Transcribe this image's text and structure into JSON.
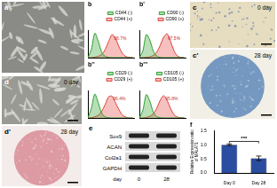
{
  "images": [
    {
      "panel": "a"
    },
    {
      "panel": "c",
      "label": "0 day"
    },
    {
      "panel": "c'",
      "label": "28 day"
    },
    {
      "panel": "d",
      "label": "0 day"
    },
    {
      "panel": "d'",
      "label": "28 day"
    }
  ],
  "blot": {
    "panel": "e",
    "rows": [
      "Sox9",
      "ACAN",
      "Col2a1",
      "GAPDH"
    ],
    "axis_label": "day",
    "columns": [
      "0",
      "28"
    ]
  },
  "chart_data": [
    {
      "type": "line",
      "title": "b",
      "x": [
        0,
        75,
        150,
        225,
        300,
        375,
        450,
        525,
        600,
        675,
        750,
        825,
        900,
        975
      ],
      "xlim": [
        0,
        1000
      ],
      "ylim": [
        0,
        100
      ],
      "series": [
        {
          "name": "CD44 (-)",
          "color": "#2ca02c",
          "values": [
            0,
            30,
            90,
            60,
            20,
            5,
            1,
            0,
            0,
            0,
            0,
            0,
            0,
            0
          ]
        },
        {
          "name": "CD44 (+)",
          "color": "#e0413a",
          "values": [
            0,
            0,
            2,
            5,
            12,
            30,
            60,
            85,
            70,
            40,
            15,
            4,
            1,
            0
          ]
        }
      ],
      "annotations": [
        {
          "text": "98.7%",
          "x": 700,
          "y": 70
        }
      ],
      "legend": "top-right",
      "grid": false,
      "tick_labels": false
    },
    {
      "type": "line",
      "title": "b'",
      "x": [
        0,
        75,
        150,
        225,
        300,
        375,
        450,
        525,
        600,
        675,
        750,
        825,
        900,
        975
      ],
      "xlim": [
        0,
        1000
      ],
      "ylim": [
        0,
        100
      ],
      "series": [
        {
          "name": "CD90 (-)",
          "color": "#2ca02c",
          "values": [
            0,
            25,
            85,
            65,
            25,
            6,
            1,
            0,
            0,
            0,
            0,
            0,
            0,
            0
          ]
        },
        {
          "name": "CD90 (+)",
          "color": "#e0413a",
          "values": [
            0,
            0,
            1,
            3,
            8,
            20,
            45,
            75,
            88,
            60,
            25,
            6,
            1,
            0
          ]
        }
      ],
      "annotations": [
        {
          "text": "97.5%",
          "x": 750,
          "y": 70
        }
      ],
      "legend": "top-right",
      "grid": false,
      "tick_labels": false
    },
    {
      "type": "line",
      "title": "b''",
      "x": [
        0,
        75,
        150,
        225,
        300,
        375,
        450,
        525,
        600,
        675,
        750,
        825,
        900,
        975
      ],
      "xlim": [
        0,
        1000
      ],
      "ylim": [
        0,
        100
      ],
      "series": [
        {
          "name": "CD29 (-)",
          "color": "#2ca02c",
          "values": [
            0,
            35,
            88,
            55,
            18,
            4,
            1,
            0,
            0,
            0,
            0,
            0,
            0,
            0
          ]
        },
        {
          "name": "CD29 (+)",
          "color": "#e0413a",
          "values": [
            0,
            1,
            4,
            10,
            25,
            50,
            78,
            80,
            55,
            30,
            10,
            3,
            0,
            0
          ]
        }
      ],
      "annotations": [
        {
          "text": "96.4%",
          "x": 680,
          "y": 70
        }
      ],
      "legend": "top-right",
      "grid": false,
      "tick_labels": false
    },
    {
      "type": "line",
      "title": "b'''",
      "x": [
        0,
        75,
        150,
        225,
        300,
        375,
        450,
        525,
        600,
        675,
        750,
        825,
        900,
        975
      ],
      "xlim": [
        0,
        1000
      ],
      "ylim": [
        0,
        100
      ],
      "series": [
        {
          "name": "CD105 (-)",
          "color": "#2ca02c",
          "values": [
            0,
            28,
            86,
            62,
            22,
            5,
            1,
            0,
            0,
            0,
            0,
            0,
            0,
            0
          ]
        },
        {
          "name": "CD105 (+)",
          "color": "#e0413a",
          "values": [
            0,
            0,
            2,
            6,
            15,
            35,
            65,
            82,
            65,
            35,
            12,
            3,
            1,
            0
          ]
        }
      ],
      "annotations": [
        {
          "text": "95.8%",
          "x": 700,
          "y": 70
        }
      ],
      "legend": "top-right",
      "grid": false,
      "tick_labels": false
    },
    {
      "type": "bar",
      "title": "f",
      "categories": [
        "Day 0",
        "Day 28"
      ],
      "values": [
        1.0,
        0.52
      ],
      "errors": [
        0.03,
        0.08
      ],
      "color": "#2b4da0",
      "y_label": "Relative Expression ratio of MALAT1",
      "ylim": [
        0,
        1.5
      ],
      "yticks": [
        {
          "value": 0,
          "label": "0.0"
        },
        0.5,
        {
          "value": 1,
          "label": "1.0"
        },
        1.5
      ],
      "annotations": [
        {
          "text": "***",
          "y": 1.12
        }
      ],
      "grid": false
    }
  ]
}
